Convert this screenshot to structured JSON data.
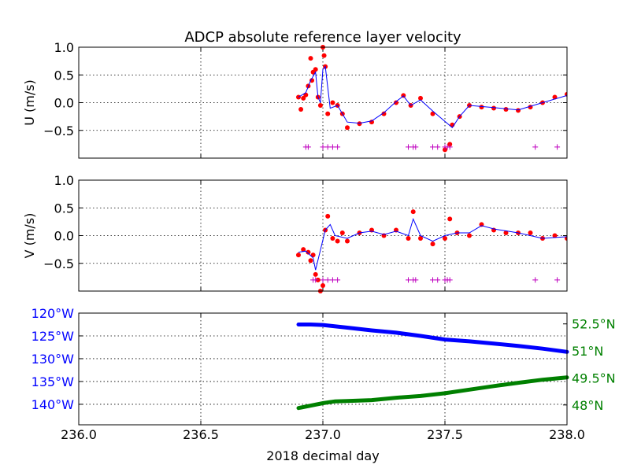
{
  "colors": {
    "obs": "#ff0000",
    "smooth": "#0000ff",
    "flag": "#bf00bf",
    "lon": "#0000ff",
    "lat": "#008000",
    "grid": "#000000"
  },
  "chart_data": [
    {
      "id": "u",
      "type": "line",
      "title": "ADCP absolute reference layer velocity",
      "ylabel": "U (m/s)",
      "xlim": [
        236.0,
        238.0
      ],
      "ylim": [
        -1.0,
        1.0
      ],
      "yticks": [
        0.5,
        0.0,
        -0.5,
        1.0
      ],
      "ytick_labels": [
        "0.5",
        "0.0",
        "−0.5",
        "1.0"
      ],
      "xticks": [
        236.0,
        236.5,
        237.0,
        237.5,
        238.0
      ],
      "grid": true,
      "series": [
        {
          "style": "dots",
          "values": [
            [
              236.9,
              0.1
            ],
            [
              236.91,
              -0.12
            ],
            [
              236.92,
              0.08
            ],
            [
              236.93,
              0.14
            ],
            [
              236.94,
              0.3
            ],
            [
              236.95,
              0.8
            ],
            [
              236.955,
              0.4
            ],
            [
              236.96,
              0.55
            ],
            [
              236.97,
              0.6
            ],
            [
              236.98,
              0.1
            ],
            [
              236.99,
              -0.05
            ],
            [
              237.0,
              1.0
            ],
            [
              237.005,
              0.85
            ],
            [
              237.01,
              0.65
            ],
            [
              237.02,
              -0.2
            ],
            [
              237.04,
              0.0
            ],
            [
              237.06,
              -0.05
            ],
            [
              237.08,
              -0.2
            ],
            [
              237.1,
              -0.45
            ],
            [
              237.15,
              -0.38
            ],
            [
              237.2,
              -0.35
            ],
            [
              237.25,
              -0.2
            ],
            [
              237.3,
              0.0
            ],
            [
              237.33,
              0.13
            ],
            [
              237.36,
              -0.05
            ],
            [
              237.4,
              0.08
            ],
            [
              237.45,
              -0.2
            ],
            [
              237.5,
              -0.85
            ],
            [
              237.52,
              -0.75
            ],
            [
              237.53,
              -0.4
            ],
            [
              237.56,
              -0.25
            ],
            [
              237.6,
              -0.05
            ],
            [
              237.65,
              -0.08
            ],
            [
              237.7,
              -0.1
            ],
            [
              237.75,
              -0.12
            ],
            [
              237.8,
              -0.14
            ],
            [
              237.85,
              -0.08
            ],
            [
              237.9,
              0.0
            ],
            [
              237.95,
              0.1
            ],
            [
              238.0,
              0.15
            ]
          ]
        },
        {
          "style": "line",
          "values": [
            [
              236.9,
              0.1
            ],
            [
              236.93,
              0.18
            ],
            [
              236.95,
              0.4
            ],
            [
              236.97,
              0.55
            ],
            [
              236.98,
              0.1
            ],
            [
              236.99,
              0.0
            ],
            [
              237.0,
              0.6
            ],
            [
              237.01,
              0.65
            ],
            [
              237.03,
              -0.1
            ],
            [
              237.06,
              -0.05
            ],
            [
              237.1,
              -0.35
            ],
            [
              237.15,
              -0.37
            ],
            [
              237.2,
              -0.33
            ],
            [
              237.25,
              -0.18
            ],
            [
              237.3,
              0.02
            ],
            [
              237.33,
              0.12
            ],
            [
              237.36,
              -0.05
            ],
            [
              237.4,
              0.05
            ],
            [
              237.45,
              -0.15
            ],
            [
              237.53,
              -0.45
            ],
            [
              237.56,
              -0.25
            ],
            [
              237.6,
              -0.05
            ],
            [
              237.7,
              -0.09
            ],
            [
              237.8,
              -0.13
            ],
            [
              237.9,
              0.0
            ],
            [
              238.0,
              0.13
            ]
          ]
        },
        {
          "style": "plus",
          "values": [
            [
              236.93,
              -0.8
            ],
            [
              236.94,
              -0.8
            ],
            [
              237.0,
              -0.8
            ],
            [
              237.02,
              -0.8
            ],
            [
              237.04,
              -0.8
            ],
            [
              237.06,
              -0.8
            ],
            [
              237.35,
              -0.8
            ],
            [
              237.37,
              -0.8
            ],
            [
              237.38,
              -0.8
            ],
            [
              237.45,
              -0.8
            ],
            [
              237.47,
              -0.8
            ],
            [
              237.5,
              -0.8
            ],
            [
              237.51,
              -0.8
            ],
            [
              237.52,
              -0.8
            ],
            [
              237.87,
              -0.8
            ],
            [
              237.96,
              -0.8
            ]
          ]
        }
      ]
    },
    {
      "id": "v",
      "type": "line",
      "ylabel": "V (m/s)",
      "xlim": [
        236.0,
        238.0
      ],
      "ylim": [
        -1.0,
        1.0
      ],
      "yticks": [
        0.5,
        0.0,
        -0.5,
        1.0
      ],
      "ytick_labels": [
        "0.5",
        "0.0",
        "−0.5",
        "1.0"
      ],
      "xticks": [
        236.0,
        236.5,
        237.0,
        237.5,
        238.0
      ],
      "grid": true,
      "series": [
        {
          "style": "dots",
          "values": [
            [
              236.9,
              -0.35
            ],
            [
              236.92,
              -0.25
            ],
            [
              236.94,
              -0.3
            ],
            [
              236.95,
              -0.45
            ],
            [
              236.96,
              -0.35
            ],
            [
              236.97,
              -0.7
            ],
            [
              236.98,
              -0.8
            ],
            [
              236.99,
              -1.0
            ],
            [
              237.0,
              -0.9
            ],
            [
              237.01,
              0.1
            ],
            [
              237.02,
              0.35
            ],
            [
              237.04,
              -0.05
            ],
            [
              237.06,
              -0.1
            ],
            [
              237.08,
              0.05
            ],
            [
              237.1,
              -0.1
            ],
            [
              237.15,
              0.05
            ],
            [
              237.2,
              0.1
            ],
            [
              237.25,
              0.0
            ],
            [
              237.3,
              0.1
            ],
            [
              237.35,
              -0.05
            ],
            [
              237.37,
              0.43
            ],
            [
              237.4,
              -0.05
            ],
            [
              237.45,
              -0.15
            ],
            [
              237.5,
              -0.05
            ],
            [
              237.52,
              0.3
            ],
            [
              237.55,
              0.05
            ],
            [
              237.6,
              0.0
            ],
            [
              237.65,
              0.2
            ],
            [
              237.7,
              0.1
            ],
            [
              237.75,
              0.05
            ],
            [
              237.8,
              0.05
            ],
            [
              237.85,
              0.05
            ],
            [
              237.9,
              -0.05
            ],
            [
              237.95,
              0.0
            ],
            [
              238.0,
              -0.05
            ]
          ]
        },
        {
          "style": "line",
          "values": [
            [
              236.9,
              -0.3
            ],
            [
              236.93,
              -0.28
            ],
            [
              236.96,
              -0.4
            ],
            [
              236.97,
              -0.62
            ],
            [
              237.01,
              0.1
            ],
            [
              237.03,
              0.2
            ],
            [
              237.05,
              0.0
            ],
            [
              237.1,
              -0.05
            ],
            [
              237.15,
              0.05
            ],
            [
              237.2,
              0.08
            ],
            [
              237.25,
              0.02
            ],
            [
              237.3,
              0.08
            ],
            [
              237.35,
              0.0
            ],
            [
              237.37,
              0.3
            ],
            [
              237.4,
              0.0
            ],
            [
              237.45,
              -0.1
            ],
            [
              237.5,
              0.0
            ],
            [
              237.55,
              0.05
            ],
            [
              237.6,
              0.05
            ],
            [
              237.65,
              0.18
            ],
            [
              237.7,
              0.12
            ],
            [
              237.8,
              0.05
            ],
            [
              237.9,
              -0.05
            ],
            [
              238.0,
              -0.02
            ]
          ]
        },
        {
          "style": "plus",
          "values": [
            [
              236.96,
              -0.8
            ],
            [
              236.97,
              -0.8
            ],
            [
              237.0,
              -0.8
            ],
            [
              237.02,
              -0.8
            ],
            [
              237.04,
              -0.8
            ],
            [
              237.06,
              -0.8
            ],
            [
              237.35,
              -0.8
            ],
            [
              237.37,
              -0.8
            ],
            [
              237.38,
              -0.8
            ],
            [
              237.45,
              -0.8
            ],
            [
              237.47,
              -0.8
            ],
            [
              237.5,
              -0.8
            ],
            [
              237.51,
              -0.8
            ],
            [
              237.52,
              -0.8
            ],
            [
              237.87,
              -0.8
            ],
            [
              237.96,
              -0.8
            ]
          ]
        }
      ]
    },
    {
      "id": "pos",
      "type": "line",
      "xlabel": "2018 decimal day",
      "xlim": [
        236.0,
        238.0
      ],
      "xticks": [
        236.0,
        236.5,
        237.0,
        237.5,
        238.0
      ],
      "xtick_labels": [
        "236.0",
        "236.5",
        "237.0",
        "237.5",
        "238.0"
      ],
      "grid": true,
      "left_axis": {
        "ylim": [
          -144.5,
          -120.0
        ],
        "yticks": [
          -120,
          -125,
          -130,
          -135,
          -140
        ],
        "ytick_labels": [
          "120°W",
          "125°W",
          "130°W",
          "135°W",
          "140°W"
        ]
      },
      "right_axis": {
        "ylim": [
          46.9,
          53.1
        ],
        "yticks": [
          52.5,
          51.0,
          49.5,
          48.0
        ],
        "ytick_labels": [
          "52.5°N",
          "51°N",
          "49.5°N",
          "48°N"
        ]
      },
      "series": [
        {
          "axis": "left",
          "style": "thick-line",
          "values": [
            [
              236.9,
              -122.5
            ],
            [
              236.95,
              -122.5
            ],
            [
              237.0,
              -122.6
            ],
            [
              237.1,
              -123.2
            ],
            [
              237.2,
              -123.8
            ],
            [
              237.3,
              -124.3
            ],
            [
              237.4,
              -125.0
            ],
            [
              237.5,
              -125.8
            ],
            [
              237.6,
              -126.2
            ],
            [
              237.7,
              -126.7
            ],
            [
              237.8,
              -127.2
            ],
            [
              237.9,
              -127.8
            ],
            [
              238.0,
              -128.5
            ]
          ]
        },
        {
          "axis": "right",
          "style": "thick-line",
          "values": [
            [
              236.9,
              47.83
            ],
            [
              237.0,
              48.1
            ],
            [
              237.05,
              48.2
            ],
            [
              237.1,
              48.22
            ],
            [
              237.2,
              48.27
            ],
            [
              237.3,
              48.4
            ],
            [
              237.4,
              48.5
            ],
            [
              237.5,
              48.65
            ],
            [
              237.6,
              48.85
            ],
            [
              237.7,
              49.05
            ],
            [
              237.8,
              49.23
            ],
            [
              237.9,
              49.4
            ],
            [
              238.0,
              49.53
            ]
          ]
        }
      ]
    }
  ]
}
